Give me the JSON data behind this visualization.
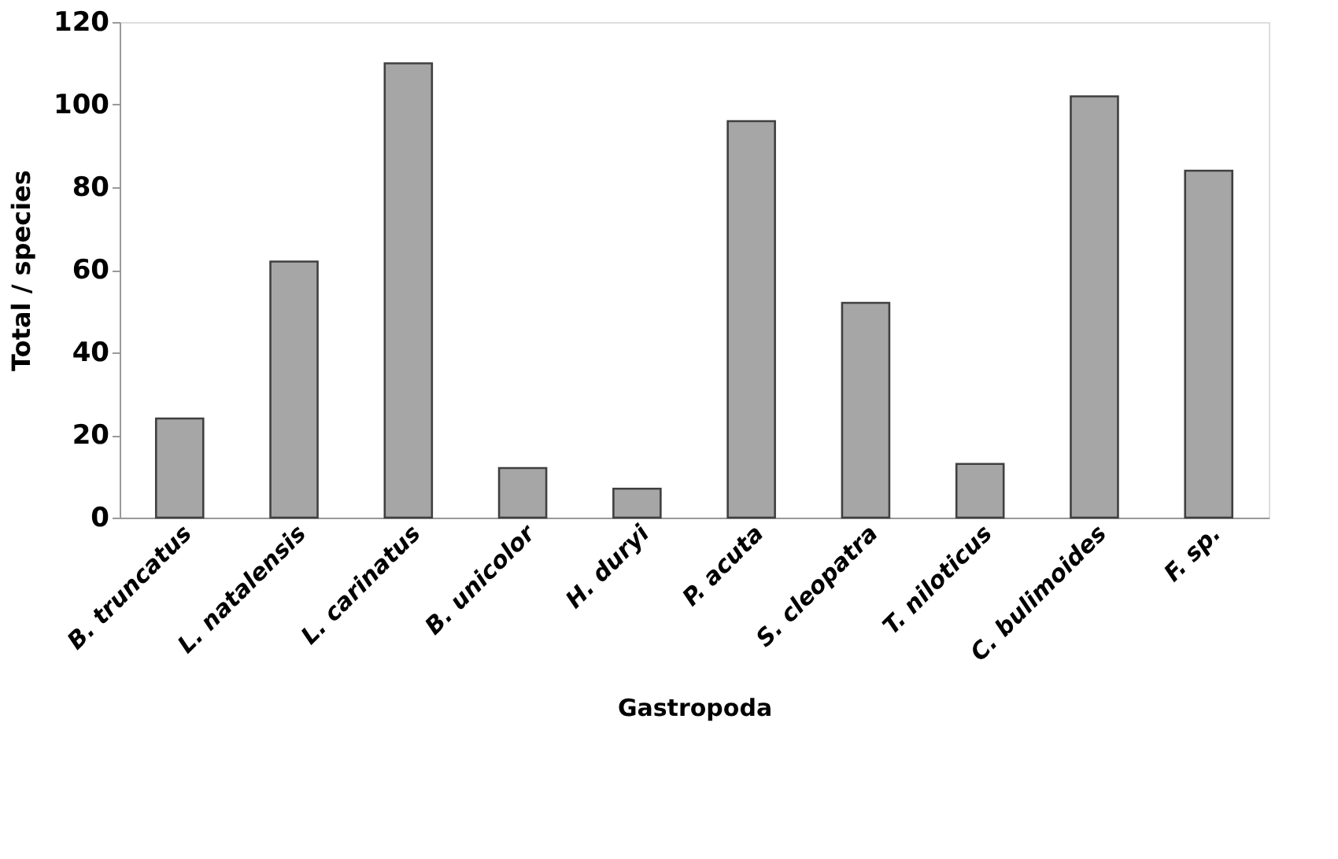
{
  "chart_data": {
    "type": "bar",
    "xlabel": "Gastropoda",
    "ylabel": "Total / species",
    "categories": [
      "B. truncatus",
      "L. natalensis",
      "L. carinatus",
      "B. unicolor",
      "H. duryi",
      "P. acuta",
      "S. cleopatra",
      "T. niloticus",
      "C. bulimoides",
      "F. sp."
    ],
    "values": [
      24,
      62,
      110,
      12,
      7,
      96,
      52,
      13,
      102,
      84
    ],
    "color": "#a6a6a6",
    "ylim": [
      0,
      120
    ],
    "yticks": [
      0,
      20,
      40,
      60,
      80,
      100,
      120
    ],
    "grid": false
  }
}
